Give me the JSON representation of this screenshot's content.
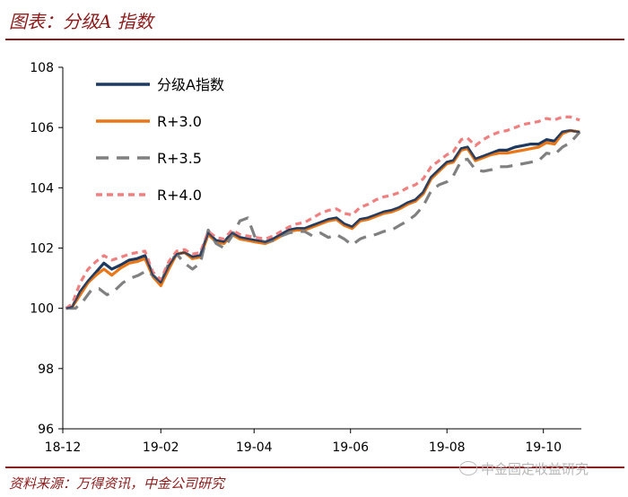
{
  "header": {
    "title": "图表：分级A 指数"
  },
  "footer": {
    "source": "资料来源：万得资讯，中金公司研究",
    "watermark": "中金固定收益研究"
  },
  "colors": {
    "accent": "#8b1a1a"
  },
  "chart_data": {
    "type": "line",
    "title": "",
    "xlabel": "",
    "ylabel": "",
    "ylim": [
      96,
      108
    ],
    "yticks": [
      96,
      98,
      100,
      102,
      104,
      106,
      108
    ],
    "xlim": [
      "2018-12-01",
      "2019-10-25"
    ],
    "xticks": [
      {
        "date": "2018-12-01",
        "label": "18-12"
      },
      {
        "date": "2019-02-01",
        "label": "19-02"
      },
      {
        "date": "2019-04-01",
        "label": "19-04"
      },
      {
        "date": "2019-06-01",
        "label": "19-06"
      },
      {
        "date": "2019-08-01",
        "label": "19-08"
      },
      {
        "date": "2019-10-01",
        "label": "19-10"
      }
    ],
    "grid": false,
    "legend_position": "top-left",
    "series": [
      {
        "name": "分级A指数",
        "color": "#1f3a60",
        "dash": "solid",
        "points": [
          [
            "2018-12-03",
            100.0
          ],
          [
            "2018-12-07",
            100.05
          ],
          [
            "2018-12-12",
            100.55
          ],
          [
            "2018-12-17",
            100.9
          ],
          [
            "2018-12-22",
            101.2
          ],
          [
            "2018-12-27",
            101.5
          ],
          [
            "2019-01-01",
            101.3
          ],
          [
            "2019-01-07",
            101.45
          ],
          [
            "2019-01-12",
            101.6
          ],
          [
            "2019-01-17",
            101.65
          ],
          [
            "2019-01-22",
            101.75
          ],
          [
            "2019-01-27",
            101.1
          ],
          [
            "2019-02-01",
            100.85
          ],
          [
            "2019-02-06",
            101.4
          ],
          [
            "2019-02-11",
            101.8
          ],
          [
            "2019-02-16",
            101.85
          ],
          [
            "2019-02-21",
            101.7
          ],
          [
            "2019-02-26",
            101.75
          ],
          [
            "2019-03-03",
            102.5
          ],
          [
            "2019-03-08",
            102.25
          ],
          [
            "2019-03-13",
            102.2
          ],
          [
            "2019-03-18",
            102.5
          ],
          [
            "2019-03-23",
            102.35
          ],
          [
            "2019-03-28",
            102.3
          ],
          [
            "2019-04-02",
            102.25
          ],
          [
            "2019-04-08",
            102.2
          ],
          [
            "2019-04-13",
            102.3
          ],
          [
            "2019-04-18",
            102.45
          ],
          [
            "2019-04-23",
            102.6
          ],
          [
            "2019-04-28",
            102.65
          ],
          [
            "2019-05-03",
            102.65
          ],
          [
            "2019-05-08",
            102.75
          ],
          [
            "2019-05-13",
            102.85
          ],
          [
            "2019-05-18",
            102.95
          ],
          [
            "2019-05-23",
            103.0
          ],
          [
            "2019-05-28",
            102.8
          ],
          [
            "2019-06-02",
            102.7
          ],
          [
            "2019-06-07",
            102.95
          ],
          [
            "2019-06-12",
            103.0
          ],
          [
            "2019-06-17",
            103.1
          ],
          [
            "2019-06-22",
            103.2
          ],
          [
            "2019-06-27",
            103.25
          ],
          [
            "2019-07-02",
            103.35
          ],
          [
            "2019-07-07",
            103.5
          ],
          [
            "2019-07-12",
            103.6
          ],
          [
            "2019-07-17",
            103.85
          ],
          [
            "2019-07-22",
            104.35
          ],
          [
            "2019-07-27",
            104.6
          ],
          [
            "2019-08-01",
            104.85
          ],
          [
            "2019-08-05",
            104.9
          ],
          [
            "2019-08-10",
            105.3
          ],
          [
            "2019-08-14",
            105.35
          ],
          [
            "2019-08-19",
            104.95
          ],
          [
            "2019-08-24",
            105.05
          ],
          [
            "2019-08-29",
            105.15
          ],
          [
            "2019-09-03",
            105.25
          ],
          [
            "2019-09-08",
            105.25
          ],
          [
            "2019-09-13",
            105.35
          ],
          [
            "2019-09-18",
            105.4
          ],
          [
            "2019-09-23",
            105.45
          ],
          [
            "2019-09-28",
            105.45
          ],
          [
            "2019-10-03",
            105.6
          ],
          [
            "2019-10-08",
            105.55
          ],
          [
            "2019-10-13",
            105.85
          ],
          [
            "2019-10-18",
            105.9
          ],
          [
            "2019-10-24",
            105.85
          ]
        ]
      },
      {
        "name": "R+3.0",
        "color": "#e97717",
        "dash": "solid",
        "points": [
          [
            "2018-12-03",
            100.0
          ],
          [
            "2018-12-07",
            100.05
          ],
          [
            "2018-12-12",
            100.45
          ],
          [
            "2018-12-17",
            100.85
          ],
          [
            "2018-12-22",
            101.1
          ],
          [
            "2018-12-27",
            101.3
          ],
          [
            "2019-01-01",
            101.1
          ],
          [
            "2019-01-07",
            101.35
          ],
          [
            "2019-01-12",
            101.5
          ],
          [
            "2019-01-17",
            101.55
          ],
          [
            "2019-01-22",
            101.65
          ],
          [
            "2019-01-27",
            101.05
          ],
          [
            "2019-02-01",
            100.75
          ],
          [
            "2019-02-06",
            101.3
          ],
          [
            "2019-02-11",
            101.8
          ],
          [
            "2019-02-16",
            101.85
          ],
          [
            "2019-02-21",
            101.65
          ],
          [
            "2019-02-26",
            101.7
          ],
          [
            "2019-03-03",
            102.45
          ],
          [
            "2019-03-08",
            102.2
          ],
          [
            "2019-03-13",
            102.15
          ],
          [
            "2019-03-18",
            102.45
          ],
          [
            "2019-03-23",
            102.3
          ],
          [
            "2019-03-28",
            102.25
          ],
          [
            "2019-04-02",
            102.2
          ],
          [
            "2019-04-08",
            102.15
          ],
          [
            "2019-04-13",
            102.25
          ],
          [
            "2019-04-18",
            102.4
          ],
          [
            "2019-04-23",
            102.55
          ],
          [
            "2019-04-28",
            102.6
          ],
          [
            "2019-05-03",
            102.6
          ],
          [
            "2019-05-08",
            102.7
          ],
          [
            "2019-05-13",
            102.8
          ],
          [
            "2019-05-18",
            102.9
          ],
          [
            "2019-05-23",
            102.95
          ],
          [
            "2019-05-28",
            102.75
          ],
          [
            "2019-06-02",
            102.65
          ],
          [
            "2019-06-07",
            102.9
          ],
          [
            "2019-06-12",
            102.95
          ],
          [
            "2019-06-17",
            103.05
          ],
          [
            "2019-06-22",
            103.15
          ],
          [
            "2019-06-27",
            103.2
          ],
          [
            "2019-07-02",
            103.3
          ],
          [
            "2019-07-07",
            103.45
          ],
          [
            "2019-07-12",
            103.55
          ],
          [
            "2019-07-17",
            103.8
          ],
          [
            "2019-07-22",
            104.3
          ],
          [
            "2019-07-27",
            104.55
          ],
          [
            "2019-08-01",
            104.8
          ],
          [
            "2019-08-05",
            104.85
          ],
          [
            "2019-08-10",
            105.25
          ],
          [
            "2019-08-14",
            105.3
          ],
          [
            "2019-08-19",
            104.9
          ],
          [
            "2019-08-24",
            105.0
          ],
          [
            "2019-08-29",
            105.1
          ],
          [
            "2019-09-03",
            105.15
          ],
          [
            "2019-09-08",
            105.15
          ],
          [
            "2019-09-13",
            105.2
          ],
          [
            "2019-09-18",
            105.25
          ],
          [
            "2019-09-23",
            105.3
          ],
          [
            "2019-09-28",
            105.35
          ],
          [
            "2019-10-03",
            105.5
          ],
          [
            "2019-10-08",
            105.45
          ],
          [
            "2019-10-13",
            105.8
          ],
          [
            "2019-10-18",
            105.9
          ],
          [
            "2019-10-24",
            105.85
          ]
        ]
      },
      {
        "name": "R+3.5",
        "color": "#808080",
        "dash": "long",
        "points": [
          [
            "2018-12-03",
            100.0
          ],
          [
            "2018-12-09",
            100.0
          ],
          [
            "2018-12-14",
            100.25
          ],
          [
            "2018-12-19",
            100.6
          ],
          [
            "2018-12-24",
            100.65
          ],
          [
            "2018-12-29",
            100.45
          ],
          [
            "2019-01-03",
            100.6
          ],
          [
            "2019-01-08",
            100.85
          ],
          [
            "2019-01-13",
            101.0
          ],
          [
            "2019-01-18",
            101.1
          ],
          [
            "2019-01-23",
            101.25
          ],
          [
            "2019-01-28",
            101.05
          ],
          [
            "2019-02-01",
            100.85
          ],
          [
            "2019-02-06",
            101.5
          ],
          [
            "2019-02-11",
            101.8
          ],
          [
            "2019-02-16",
            101.5
          ],
          [
            "2019-02-21",
            101.3
          ],
          [
            "2019-02-26",
            101.5
          ],
          [
            "2019-03-03",
            102.6
          ],
          [
            "2019-03-08",
            102.15
          ],
          [
            "2019-03-13",
            102.0
          ],
          [
            "2019-03-18",
            102.4
          ],
          [
            "2019-03-23",
            102.9
          ],
          [
            "2019-03-28",
            103.0
          ],
          [
            "2019-04-02",
            102.3
          ],
          [
            "2019-04-08",
            102.2
          ],
          [
            "2019-04-13",
            102.25
          ],
          [
            "2019-04-18",
            102.4
          ],
          [
            "2019-04-23",
            102.5
          ],
          [
            "2019-04-28",
            102.55
          ],
          [
            "2019-05-03",
            102.55
          ],
          [
            "2019-05-08",
            102.4
          ],
          [
            "2019-05-13",
            102.5
          ],
          [
            "2019-05-18",
            102.35
          ],
          [
            "2019-05-23",
            102.45
          ],
          [
            "2019-05-28",
            102.3
          ],
          [
            "2019-06-02",
            102.1
          ],
          [
            "2019-06-07",
            102.3
          ],
          [
            "2019-06-12",
            102.4
          ],
          [
            "2019-06-17",
            102.45
          ],
          [
            "2019-06-22",
            102.55
          ],
          [
            "2019-06-27",
            102.6
          ],
          [
            "2019-07-02",
            102.75
          ],
          [
            "2019-07-07",
            102.9
          ],
          [
            "2019-07-12",
            103.1
          ],
          [
            "2019-07-17",
            103.4
          ],
          [
            "2019-07-22",
            103.9
          ],
          [
            "2019-07-27",
            104.1
          ],
          [
            "2019-08-01",
            104.2
          ],
          [
            "2019-08-05",
            104.4
          ],
          [
            "2019-08-10",
            104.9
          ],
          [
            "2019-08-14",
            104.95
          ],
          [
            "2019-08-19",
            104.6
          ],
          [
            "2019-08-24",
            104.55
          ],
          [
            "2019-08-29",
            104.6
          ],
          [
            "2019-09-03",
            104.7
          ],
          [
            "2019-09-08",
            104.7
          ],
          [
            "2019-09-13",
            104.75
          ],
          [
            "2019-09-18",
            104.8
          ],
          [
            "2019-09-23",
            104.85
          ],
          [
            "2019-09-28",
            104.9
          ],
          [
            "2019-10-03",
            105.15
          ],
          [
            "2019-10-08",
            105.1
          ],
          [
            "2019-10-13",
            105.35
          ],
          [
            "2019-10-18",
            105.5
          ],
          [
            "2019-10-24",
            105.85
          ]
        ]
      },
      {
        "name": "R+4.0",
        "color": "#f08080",
        "dash": "short",
        "points": [
          [
            "2018-12-03",
            100.0
          ],
          [
            "2018-12-07",
            100.15
          ],
          [
            "2018-12-12",
            100.85
          ],
          [
            "2018-12-17",
            101.3
          ],
          [
            "2018-12-22",
            101.55
          ],
          [
            "2018-12-27",
            101.75
          ],
          [
            "2019-01-01",
            101.6
          ],
          [
            "2019-01-07",
            101.7
          ],
          [
            "2019-01-12",
            101.8
          ],
          [
            "2019-01-17",
            101.85
          ],
          [
            "2019-01-22",
            101.9
          ],
          [
            "2019-01-27",
            101.2
          ],
          [
            "2019-02-01",
            100.95
          ],
          [
            "2019-02-06",
            101.55
          ],
          [
            "2019-02-11",
            101.9
          ],
          [
            "2019-02-16",
            101.95
          ],
          [
            "2019-02-21",
            101.8
          ],
          [
            "2019-02-26",
            101.85
          ],
          [
            "2019-03-03",
            102.55
          ],
          [
            "2019-03-08",
            102.35
          ],
          [
            "2019-03-13",
            102.3
          ],
          [
            "2019-03-18",
            102.6
          ],
          [
            "2019-03-23",
            102.45
          ],
          [
            "2019-03-28",
            102.4
          ],
          [
            "2019-04-02",
            102.35
          ],
          [
            "2019-04-08",
            102.3
          ],
          [
            "2019-04-13",
            102.4
          ],
          [
            "2019-04-18",
            102.55
          ],
          [
            "2019-04-23",
            102.7
          ],
          [
            "2019-04-28",
            102.8
          ],
          [
            "2019-05-03",
            102.85
          ],
          [
            "2019-05-08",
            103.0
          ],
          [
            "2019-05-13",
            103.15
          ],
          [
            "2019-05-18",
            103.25
          ],
          [
            "2019-05-23",
            103.3
          ],
          [
            "2019-05-28",
            103.15
          ],
          [
            "2019-06-02",
            103.1
          ],
          [
            "2019-06-07",
            103.35
          ],
          [
            "2019-06-12",
            103.45
          ],
          [
            "2019-06-17",
            103.6
          ],
          [
            "2019-06-22",
            103.7
          ],
          [
            "2019-06-27",
            103.75
          ],
          [
            "2019-07-02",
            103.85
          ],
          [
            "2019-07-07",
            104.0
          ],
          [
            "2019-07-12",
            104.1
          ],
          [
            "2019-07-17",
            104.3
          ],
          [
            "2019-07-22",
            104.7
          ],
          [
            "2019-07-27",
            104.9
          ],
          [
            "2019-08-01",
            105.1
          ],
          [
            "2019-08-05",
            105.2
          ],
          [
            "2019-08-10",
            105.6
          ],
          [
            "2019-08-14",
            105.65
          ],
          [
            "2019-08-19",
            105.4
          ],
          [
            "2019-08-24",
            105.6
          ],
          [
            "2019-08-29",
            105.75
          ],
          [
            "2019-09-03",
            105.85
          ],
          [
            "2019-09-08",
            105.9
          ],
          [
            "2019-09-13",
            106.0
          ],
          [
            "2019-09-18",
            106.1
          ],
          [
            "2019-09-23",
            106.15
          ],
          [
            "2019-09-28",
            106.2
          ],
          [
            "2019-10-03",
            106.3
          ],
          [
            "2019-10-08",
            106.25
          ],
          [
            "2019-10-13",
            106.35
          ],
          [
            "2019-10-18",
            106.35
          ],
          [
            "2019-10-24",
            106.25
          ]
        ]
      }
    ]
  }
}
